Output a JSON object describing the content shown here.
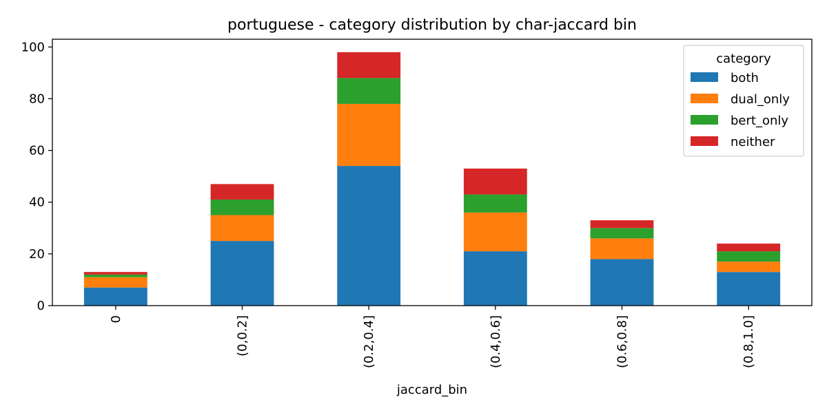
{
  "chart_data": {
    "type": "bar",
    "stacked": true,
    "title": "portuguese - category distribution by char-jaccard bin",
    "xlabel": "jaccard_bin",
    "ylabel": "",
    "categories": [
      "0",
      "(0,0.2]",
      "(0.2,0.4]",
      "(0.4,0.6]",
      "(0.6,0.8]",
      "(0.8,1.0]"
    ],
    "ylim": [
      0,
      103
    ],
    "yticks": [
      0,
      20,
      40,
      60,
      80,
      100
    ],
    "legend_title": "category",
    "legend_position": "top-right",
    "grid": false,
    "series": [
      {
        "name": "both",
        "color": "#1f77b4",
        "values": [
          7,
          25,
          54,
          21,
          18,
          13
        ]
      },
      {
        "name": "dual_only",
        "color": "#ff7f0e",
        "values": [
          4,
          10,
          24,
          15,
          8,
          4
        ]
      },
      {
        "name": "bert_only",
        "color": "#2ca02c",
        "values": [
          1,
          6,
          10,
          7,
          4,
          4
        ]
      },
      {
        "name": "neither",
        "color": "#d62728",
        "values": [
          1,
          6,
          10,
          10,
          3,
          3
        ]
      }
    ]
  }
}
